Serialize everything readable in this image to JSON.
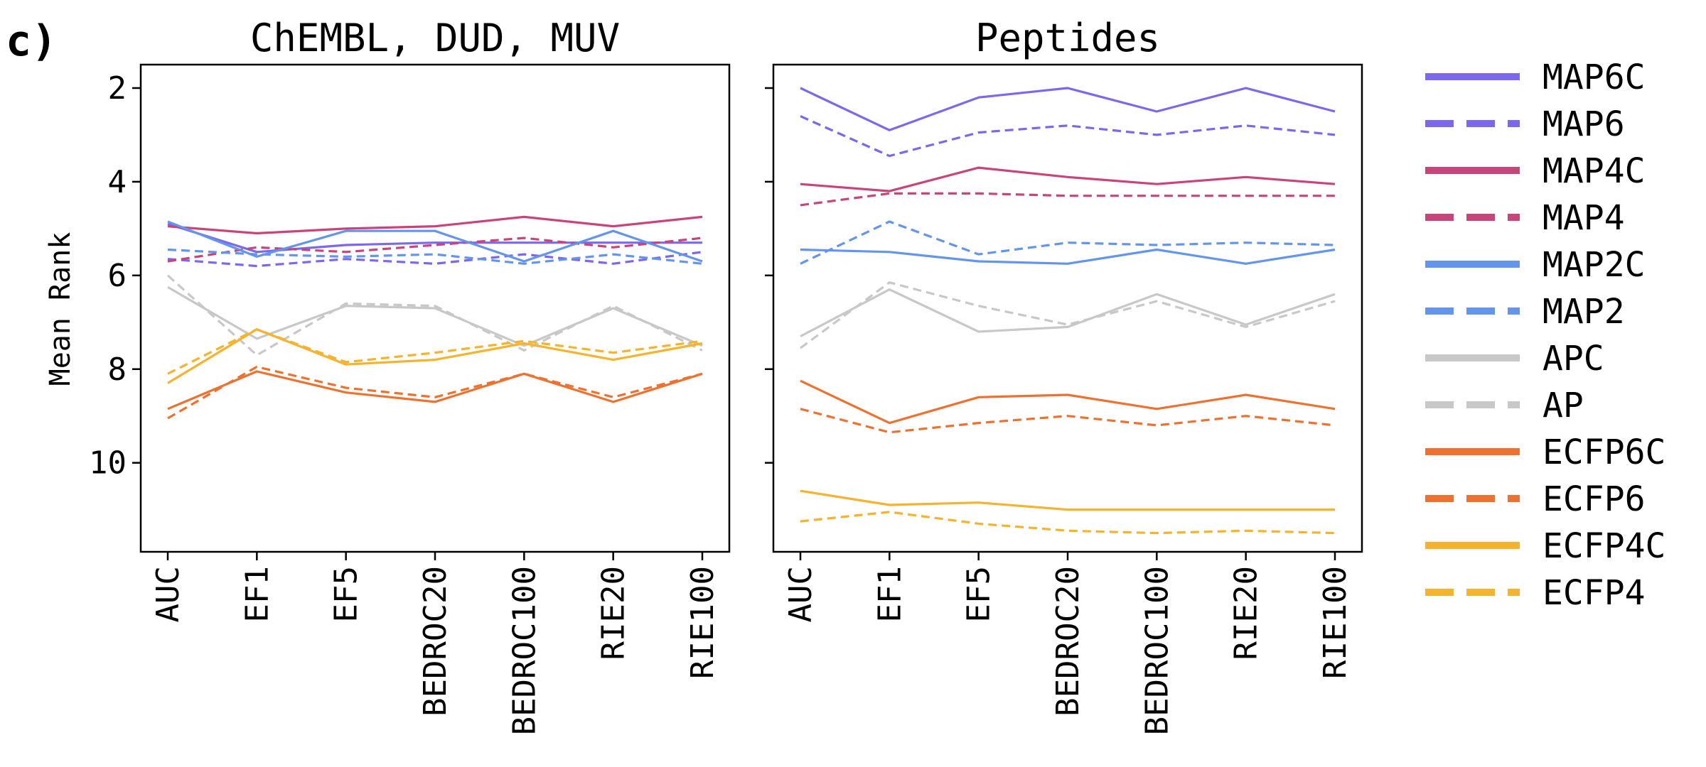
{
  "panel_label": "c)",
  "ylabel": "Mean Rank",
  "legend": [
    {
      "name": "MAP6C",
      "color": "#7B68EE",
      "dash": false
    },
    {
      "name": "MAP6",
      "color": "#7B68EE",
      "dash": true
    },
    {
      "name": "MAP4C",
      "color": "#C8447A",
      "dash": false
    },
    {
      "name": "MAP4",
      "color": "#C8447A",
      "dash": true
    },
    {
      "name": "MAP2C",
      "color": "#6495ED",
      "dash": false
    },
    {
      "name": "MAP2",
      "color": "#6495ED",
      "dash": true
    },
    {
      "name": "APC",
      "color": "#C8C8C8",
      "dash": false
    },
    {
      "name": "AP",
      "color": "#C8C8C8",
      "dash": true
    },
    {
      "name": "ECFP6C",
      "color": "#EE7130",
      "dash": false
    },
    {
      "name": "ECFP6",
      "color": "#EE7130",
      "dash": true
    },
    {
      "name": "ECFP4C",
      "color": "#F5B32E",
      "dash": false
    },
    {
      "name": "ECFP4",
      "color": "#F5B32E",
      "dash": true
    }
  ],
  "chart_data": [
    {
      "type": "line",
      "title": "ChEMBL, DUD, MUV",
      "categories": [
        "AUC",
        "EF1",
        "EF5",
        "BEDROC20",
        "BEDROC100",
        "RIE20",
        "RIE100"
      ],
      "ylabel": "Mean Rank",
      "ylim": [
        11.9,
        1.5
      ],
      "y_inverted": true,
      "yticks": [
        "2",
        "4",
        "6",
        "8",
        "10"
      ],
      "series": [
        {
          "name": "MAP6C",
          "values": [
            4.9,
            5.5,
            5.35,
            5.3,
            5.3,
            5.3,
            5.3
          ]
        },
        {
          "name": "MAP6",
          "values": [
            5.65,
            5.8,
            5.65,
            5.75,
            5.55,
            5.75,
            5.5
          ]
        },
        {
          "name": "MAP4C",
          "values": [
            4.95,
            5.1,
            5.0,
            4.95,
            4.75,
            4.95,
            4.75
          ]
        },
        {
          "name": "MAP4",
          "values": [
            5.7,
            5.4,
            5.5,
            5.35,
            5.2,
            5.4,
            5.2
          ]
        },
        {
          "name": "MAP2C",
          "values": [
            4.85,
            5.6,
            5.05,
            5.05,
            5.7,
            5.05,
            5.7
          ]
        },
        {
          "name": "MAP2",
          "values": [
            5.45,
            5.55,
            5.6,
            5.55,
            5.75,
            5.55,
            5.75
          ]
        },
        {
          "name": "APC",
          "values": [
            6.25,
            7.35,
            6.65,
            6.7,
            7.5,
            6.7,
            7.5
          ]
        },
        {
          "name": "AP",
          "values": [
            6.0,
            7.7,
            6.6,
            6.65,
            7.6,
            6.65,
            7.6
          ]
        },
        {
          "name": "ECFP6C",
          "values": [
            8.85,
            8.05,
            8.5,
            8.7,
            8.1,
            8.7,
            8.1
          ]
        },
        {
          "name": "ECFP6",
          "values": [
            9.05,
            7.95,
            8.4,
            8.6,
            8.1,
            8.6,
            8.1
          ]
        },
        {
          "name": "ECFP4C",
          "values": [
            8.3,
            7.15,
            7.9,
            7.8,
            7.45,
            7.8,
            7.45
          ]
        },
        {
          "name": "ECFP4",
          "values": [
            8.1,
            7.15,
            7.85,
            7.65,
            7.4,
            7.65,
            7.4
          ]
        }
      ]
    },
    {
      "type": "line",
      "title": "Peptides",
      "categories": [
        "AUC",
        "EF1",
        "EF5",
        "BEDROC20",
        "BEDROC100",
        "RIE20",
        "RIE100"
      ],
      "ylim": [
        11.9,
        1.5
      ],
      "y_inverted": true,
      "series": [
        {
          "name": "MAP6C",
          "values": [
            2.0,
            2.9,
            2.2,
            2.0,
            2.5,
            2.0,
            2.5
          ]
        },
        {
          "name": "MAP6",
          "values": [
            2.6,
            3.45,
            2.95,
            2.8,
            3.0,
            2.8,
            3.0
          ]
        },
        {
          "name": "MAP4C",
          "values": [
            4.05,
            4.2,
            3.7,
            3.9,
            4.05,
            3.9,
            4.05
          ]
        },
        {
          "name": "MAP4",
          "values": [
            4.5,
            4.25,
            4.25,
            4.3,
            4.3,
            4.3,
            4.3
          ]
        },
        {
          "name": "MAP2C",
          "values": [
            5.45,
            5.5,
            5.7,
            5.75,
            5.45,
            5.75,
            5.45
          ]
        },
        {
          "name": "MAP2",
          "values": [
            5.75,
            4.85,
            5.55,
            5.3,
            5.35,
            5.3,
            5.35
          ]
        },
        {
          "name": "APC",
          "values": [
            7.3,
            6.3,
            7.2,
            7.1,
            6.4,
            7.05,
            6.4
          ]
        },
        {
          "name": "AP",
          "values": [
            7.55,
            6.15,
            6.65,
            7.05,
            6.55,
            7.1,
            6.55
          ]
        },
        {
          "name": "ECFP6C",
          "values": [
            8.25,
            9.15,
            8.6,
            8.55,
            8.85,
            8.55,
            8.85
          ]
        },
        {
          "name": "ECFP6",
          "values": [
            8.85,
            9.35,
            9.15,
            9.0,
            9.2,
            9.0,
            9.2
          ]
        },
        {
          "name": "ECFP4C",
          "values": [
            10.6,
            10.9,
            10.85,
            11.0,
            11.0,
            11.0,
            11.0
          ]
        },
        {
          "name": "ECFP4",
          "values": [
            11.25,
            11.05,
            11.3,
            11.45,
            11.5,
            11.45,
            11.5
          ]
        }
      ]
    }
  ]
}
